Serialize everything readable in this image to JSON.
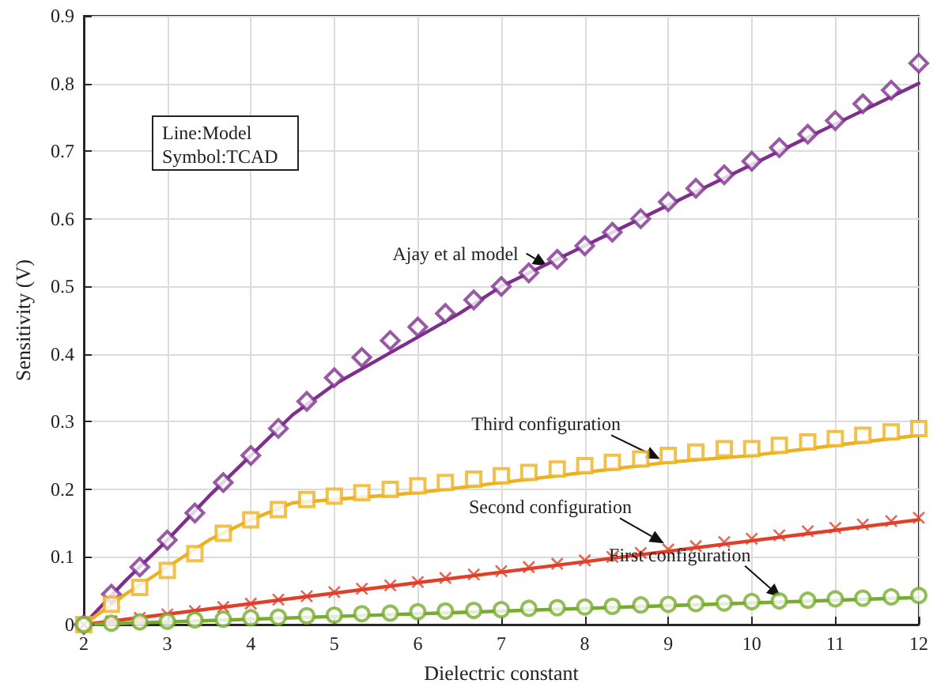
{
  "chart_data": {
    "type": "line",
    "xlabel": "Dielectric constant",
    "ylabel": "Sensitivity (V)",
    "xlim": [
      2,
      12
    ],
    "xticks": [
      2,
      3,
      4,
      5,
      6,
      7,
      8,
      9,
      10,
      11,
      12
    ],
    "ylim": [
      0,
      0.9
    ],
    "yticks": [
      0,
      0.1,
      0.2,
      0.3,
      0.4,
      0.5,
      0.6,
      0.7,
      0.8,
      0.9
    ],
    "grid": true,
    "series": [
      {
        "marker": "none",
        "color": "#7e2f8e",
        "x": [
          2,
          2.5,
          3,
          3.5,
          4,
          4.5,
          5,
          5.5,
          6,
          6.5,
          7,
          8,
          9,
          10,
          11,
          12
        ],
        "values": [
          0,
          0.065,
          0.125,
          0.19,
          0.25,
          0.31,
          0.355,
          0.39,
          0.425,
          0.46,
          0.5,
          0.56,
          0.62,
          0.68,
          0.74,
          0.8
        ]
      },
      {
        "type": "scatter",
        "marker": "diamond",
        "color": "#7e2f8e",
        "x": [
          2,
          2.33,
          2.67,
          3,
          3.33,
          3.67,
          4,
          4.33,
          4.67,
          5,
          5.33,
          5.67,
          6,
          6.33,
          6.67,
          7,
          7.33,
          7.67,
          8,
          8.33,
          8.67,
          9,
          9.33,
          9.67,
          10,
          10.33,
          10.67,
          11,
          11.33,
          11.67,
          12
        ],
        "values": [
          0,
          0.045,
          0.085,
          0.125,
          0.165,
          0.21,
          0.25,
          0.29,
          0.33,
          0.365,
          0.395,
          0.42,
          0.44,
          0.46,
          0.48,
          0.5,
          0.52,
          0.54,
          0.56,
          0.58,
          0.6,
          0.625,
          0.645,
          0.665,
          0.685,
          0.705,
          0.725,
          0.745,
          0.77,
          0.79,
          0.83
        ]
      },
      {
        "marker": "none",
        "color": "#edb120",
        "x": [
          2,
          2.5,
          3,
          3.5,
          4,
          4.5,
          5,
          5.5,
          6,
          7,
          8,
          9,
          10,
          11,
          12
        ],
        "values": [
          0,
          0.045,
          0.085,
          0.125,
          0.155,
          0.18,
          0.185,
          0.19,
          0.195,
          0.21,
          0.225,
          0.24,
          0.25,
          0.265,
          0.28
        ]
      },
      {
        "type": "scatter",
        "marker": "square",
        "color": "#edb120",
        "x": [
          2,
          2.33,
          2.67,
          3,
          3.33,
          3.67,
          4,
          4.33,
          4.67,
          5,
          5.33,
          5.67,
          6,
          6.33,
          6.67,
          7,
          7.33,
          7.67,
          8,
          8.33,
          8.67,
          9,
          9.33,
          9.67,
          10,
          10.33,
          10.67,
          11,
          11.33,
          11.67,
          12
        ],
        "values": [
          0,
          0.03,
          0.055,
          0.08,
          0.105,
          0.135,
          0.155,
          0.17,
          0.185,
          0.19,
          0.195,
          0.2,
          0.205,
          0.21,
          0.215,
          0.22,
          0.225,
          0.23,
          0.235,
          0.24,
          0.245,
          0.25,
          0.255,
          0.26,
          0.26,
          0.265,
          0.27,
          0.275,
          0.28,
          0.285,
          0.29
        ]
      },
      {
        "marker": "none",
        "color": "#e0402a",
        "x": [
          2,
          12
        ],
        "values": [
          0,
          0.155
        ]
      },
      {
        "type": "scatter",
        "marker": "cross",
        "color": "#e0402a",
        "x": [
          2,
          2.33,
          2.67,
          3,
          3.33,
          3.67,
          4,
          4.33,
          4.67,
          5,
          5.33,
          5.67,
          6,
          6.33,
          6.67,
          7,
          7.33,
          7.67,
          8,
          8.33,
          8.67,
          9,
          9.33,
          9.67,
          10,
          10.33,
          10.67,
          11,
          11.33,
          11.67,
          12
        ],
        "values": [
          0,
          0.005,
          0.01,
          0.015,
          0.02,
          0.026,
          0.031,
          0.037,
          0.042,
          0.048,
          0.053,
          0.058,
          0.063,
          0.069,
          0.074,
          0.079,
          0.085,
          0.09,
          0.095,
          0.1,
          0.106,
          0.111,
          0.116,
          0.122,
          0.127,
          0.132,
          0.138,
          0.143,
          0.148,
          0.153,
          0.158
        ]
      },
      {
        "marker": "none",
        "color": "#77ac30",
        "x": [
          2,
          12
        ],
        "values": [
          0,
          0.04
        ]
      },
      {
        "type": "scatter",
        "marker": "circle",
        "color": "#77ac30",
        "x": [
          2,
          2.33,
          2.67,
          3,
          3.33,
          3.67,
          4,
          4.33,
          4.67,
          5,
          5.33,
          5.67,
          6,
          6.33,
          6.67,
          7,
          7.33,
          7.67,
          8,
          8.33,
          8.67,
          9,
          9.33,
          9.67,
          10,
          10.33,
          10.67,
          11,
          11.33,
          11.67,
          12
        ],
        "values": [
          0,
          0.002,
          0.004,
          0.005,
          0.007,
          0.008,
          0.01,
          0.011,
          0.013,
          0.014,
          0.016,
          0.017,
          0.019,
          0.02,
          0.021,
          0.022,
          0.024,
          0.025,
          0.026,
          0.027,
          0.029,
          0.03,
          0.031,
          0.032,
          0.034,
          0.035,
          0.036,
          0.038,
          0.039,
          0.041,
          0.043
        ]
      }
    ],
    "annotations": [
      "Line:Model\nSymbol:TCAD",
      {
        "text": "Ajay et al model",
        "x": 7.55,
        "y": 0.53
      },
      {
        "text": "Third configuration",
        "x": 8.9,
        "y": 0.245
      },
      {
        "text": "Second configuration",
        "x": 8.95,
        "y": 0.12
      },
      {
        "text": "First configuration",
        "x": 10.35,
        "y": 0.04
      }
    ]
  }
}
